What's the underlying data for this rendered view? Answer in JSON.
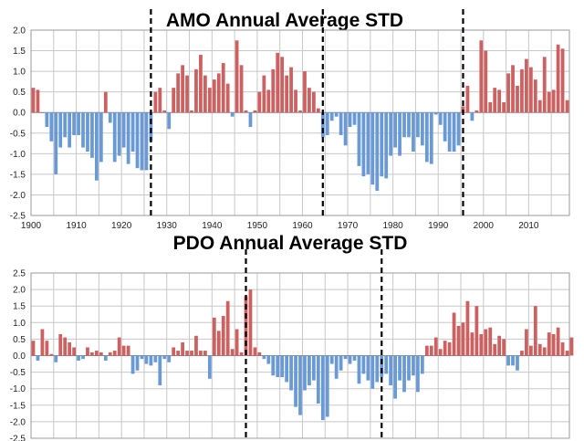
{
  "colors": {
    "positive": "#cd6060",
    "negative": "#6a9ad6"
  },
  "chart_data": [
    {
      "type": "bar",
      "title": "AMO Annual Average STD",
      "x_start": 1900,
      "x_end": 2018,
      "ylim": [
        -2.5,
        2.0
      ],
      "y_ticks": [
        "2.0",
        "1.5",
        "1.0",
        "0.5",
        "0.0",
        "-0.5",
        "-1.0",
        "-1.5",
        "-2.0",
        "-2.5"
      ],
      "x_ticks": [
        "1900",
        "1910",
        "1920",
        "1930",
        "1940",
        "1950",
        "1960",
        "1970",
        "1980",
        "1990",
        "2000",
        "2010"
      ],
      "grid": true,
      "regime_shifts": [
        1926,
        1964,
        1995
      ],
      "values": [
        0.6,
        0.55,
        0.0,
        -0.35,
        -0.7,
        -1.5,
        -0.85,
        -0.6,
        -0.85,
        -0.55,
        -0.55,
        -0.85,
        -0.95,
        -1.1,
        -1.65,
        -1.2,
        0.5,
        -0.25,
        -1.2,
        -1.05,
        -0.85,
        -1.25,
        -0.95,
        -1.35,
        -1.4,
        -1.4,
        -0.7,
        0.5,
        0.6,
        0.05,
        -0.4,
        0.6,
        0.95,
        1.15,
        0.9,
        0.05,
        1.05,
        1.4,
        0.9,
        0.6,
        0.8,
        0.95,
        1.2,
        0.7,
        -0.1,
        1.75,
        1.15,
        0.05,
        -0.35,
        0.05,
        0.5,
        0.9,
        0.55,
        1.05,
        1.45,
        1.35,
        0.9,
        1.1,
        0.55,
        0.05,
        1.0,
        0.6,
        0.5,
        0.1,
        -0.6,
        -0.55,
        -0.2,
        -0.1,
        -0.55,
        -0.8,
        -0.35,
        -0.3,
        -1.3,
        -1.55,
        -1.5,
        -1.75,
        -1.9,
        -1.55,
        -1.6,
        -1.05,
        -0.85,
        -1.05,
        -0.6,
        -0.6,
        -0.95,
        -0.6,
        -0.8,
        -1.2,
        -1.25,
        -0.05,
        -0.3,
        -0.7,
        -0.95,
        -0.95,
        -0.8,
        0.15,
        0.65,
        -0.2,
        0.05,
        1.75,
        1.5,
        0.25,
        0.6,
        0.55,
        0.25,
        0.95,
        1.15,
        0.65,
        1.05,
        1.3,
        1.1,
        0.8,
        0.3,
        1.35,
        0.5,
        0.55,
        1.65,
        1.55,
        0.3
      ]
    },
    {
      "type": "bar",
      "title": "PDO Annual Average STD",
      "x_start": 1900,
      "x_end": 2018,
      "ylim": [
        -2.5,
        2.5
      ],
      "y_ticks": [
        "2.5",
        "2.0",
        "1.5",
        "1.0",
        "0.5",
        "0.0",
        "-0.5",
        "-1.0",
        "-1.5",
        "-2.0",
        "-2.5"
      ],
      "grid": true,
      "regime_shifts": [
        1947,
        1977
      ],
      "values": [
        0.45,
        -0.15,
        0.8,
        0.45,
        0.05,
        -0.2,
        0.65,
        0.55,
        0.4,
        0.25,
        -0.15,
        -0.1,
        0.25,
        0.1,
        0.15,
        0.1,
        -0.15,
        0.1,
        0.15,
        0.55,
        0.3,
        0.3,
        -0.55,
        -0.45,
        -0.1,
        -0.25,
        -0.3,
        -0.2,
        -0.9,
        -0.1,
        -0.2,
        0.25,
        0.15,
        0.4,
        0.15,
        0.15,
        0.6,
        0.15,
        0.15,
        -0.7,
        1.15,
        0.75,
        1.2,
        1.65,
        0.2,
        0.8,
        0.1,
        1.8,
        2.0,
        0.25,
        0.1,
        -0.1,
        -0.25,
        -0.6,
        -0.65,
        -0.65,
        -0.8,
        -1.05,
        -1.55,
        -1.8,
        -1.05,
        -0.9,
        -0.75,
        -1.45,
        -1.95,
        -1.85,
        -0.25,
        -0.7,
        -0.45,
        -0.1,
        -0.25,
        -0.15,
        -0.85,
        -0.55,
        -0.75,
        -1.0,
        -0.8,
        -0.65,
        -0.55,
        -0.9,
        -1.3,
        -0.75,
        -1.1,
        -0.75,
        -0.6,
        -1.1,
        -0.55,
        0.3,
        0.3,
        0.55,
        0.2,
        0.45,
        0.4,
        1.3,
        0.9,
        1.0,
        1.65,
        0.7,
        1.5,
        0.65,
        0.8,
        0.85,
        0.35,
        0.6,
        0.5,
        -0.3,
        -0.3,
        -0.45,
        0.15,
        0.8,
        0.3,
        1.5,
        0.35,
        0.25,
        0.7,
        0.65,
        0.85,
        0.4,
        0.15,
        0.55
      ]
    }
  ]
}
